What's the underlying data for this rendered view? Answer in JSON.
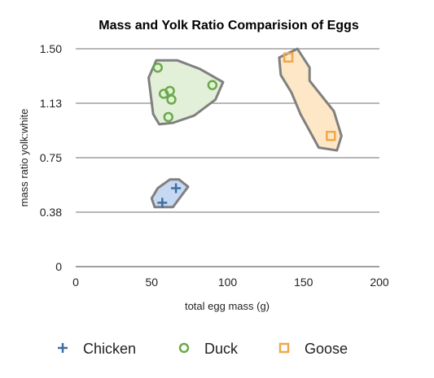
{
  "chart_data": {
    "type": "scatter",
    "title": "Mass and Yolk Ratio Comparision of Eggs",
    "xlabel": "total egg mass (g)",
    "ylabel": "mass ratio yolk:white",
    "xlim": [
      0,
      200
    ],
    "ylim": [
      0,
      1.5
    ],
    "x_ticks": [
      "0",
      "50",
      "100",
      "150",
      "200"
    ],
    "y_ticks": [
      "0",
      "0.38",
      "0.75",
      "1.13",
      "1.50"
    ],
    "grid": "horizontal",
    "legend_position": "bottom",
    "series": [
      {
        "name": "Chicken",
        "marker": "plus",
        "color": "#3d6fa3",
        "hull_color": "#c6d8f2",
        "points": [
          [
            57,
            0.44
          ],
          [
            66,
            0.54
          ]
        ],
        "hull": [
          [
            50,
            0.47
          ],
          [
            54,
            0.54
          ],
          [
            62,
            0.6
          ],
          [
            68,
            0.6
          ],
          [
            74,
            0.55
          ],
          [
            64,
            0.41
          ],
          [
            52,
            0.41
          ]
        ]
      },
      {
        "name": "Duck",
        "marker": "circle",
        "color": "#6aaa4a",
        "hull_color": "#e3f0d9",
        "points": [
          [
            54,
            1.37
          ],
          [
            58,
            1.19
          ],
          [
            62,
            1.21
          ],
          [
            63,
            1.15
          ],
          [
            61,
            1.03
          ],
          [
            90,
            1.25
          ]
        ],
        "hull": [
          [
            53,
            1.42
          ],
          [
            48,
            1.3
          ],
          [
            51,
            1.05
          ],
          [
            55,
            0.98
          ],
          [
            64,
            0.99
          ],
          [
            78,
            1.04
          ],
          [
            92,
            1.15
          ],
          [
            97,
            1.27
          ],
          [
            82,
            1.36
          ],
          [
            67,
            1.42
          ]
        ]
      },
      {
        "name": "Goose",
        "marker": "square",
        "color": "#f0a84a",
        "hull_color": "#fde7c6",
        "points": [
          [
            140,
            1.44
          ],
          [
            168,
            0.9
          ]
        ],
        "hull": [
          [
            134,
            1.44
          ],
          [
            146,
            1.5
          ],
          [
            154,
            1.37
          ],
          [
            154,
            1.28
          ],
          [
            170,
            1.07
          ],
          [
            175,
            0.9
          ],
          [
            172,
            0.8
          ],
          [
            160,
            0.82
          ],
          [
            148,
            1.05
          ],
          [
            142,
            1.2
          ],
          [
            135,
            1.32
          ]
        ]
      }
    ]
  }
}
